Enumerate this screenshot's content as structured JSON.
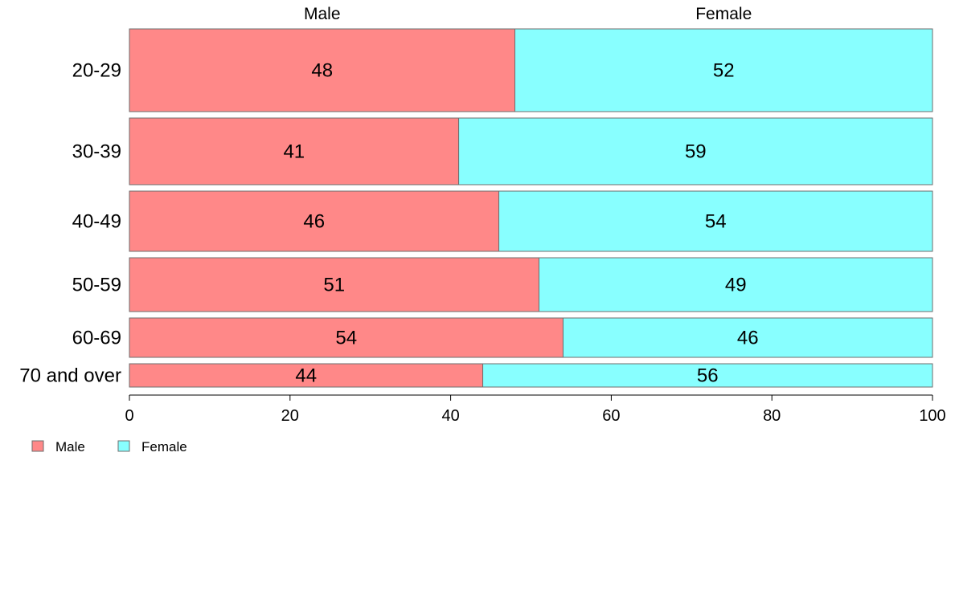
{
  "chart_data": {
    "type": "bar",
    "orientation": "horizontal",
    "stacked": true,
    "categories": [
      "20-29",
      "30-39",
      "40-49",
      "50-59",
      "60-69",
      "70 and over"
    ],
    "series": [
      {
        "name": "Male",
        "color": "#ff8888",
        "values": [
          48,
          41,
          46,
          51,
          54,
          44
        ]
      },
      {
        "name": "Female",
        "color": "#88ffff",
        "values": [
          52,
          59,
          54,
          49,
          46,
          56
        ]
      }
    ],
    "header_labels": [
      "Male",
      "Female"
    ],
    "xlim": [
      0,
      100
    ],
    "xticks": [
      0,
      20,
      40,
      60,
      80,
      100
    ],
    "legend_position": "bottom-left",
    "grid": false
  }
}
